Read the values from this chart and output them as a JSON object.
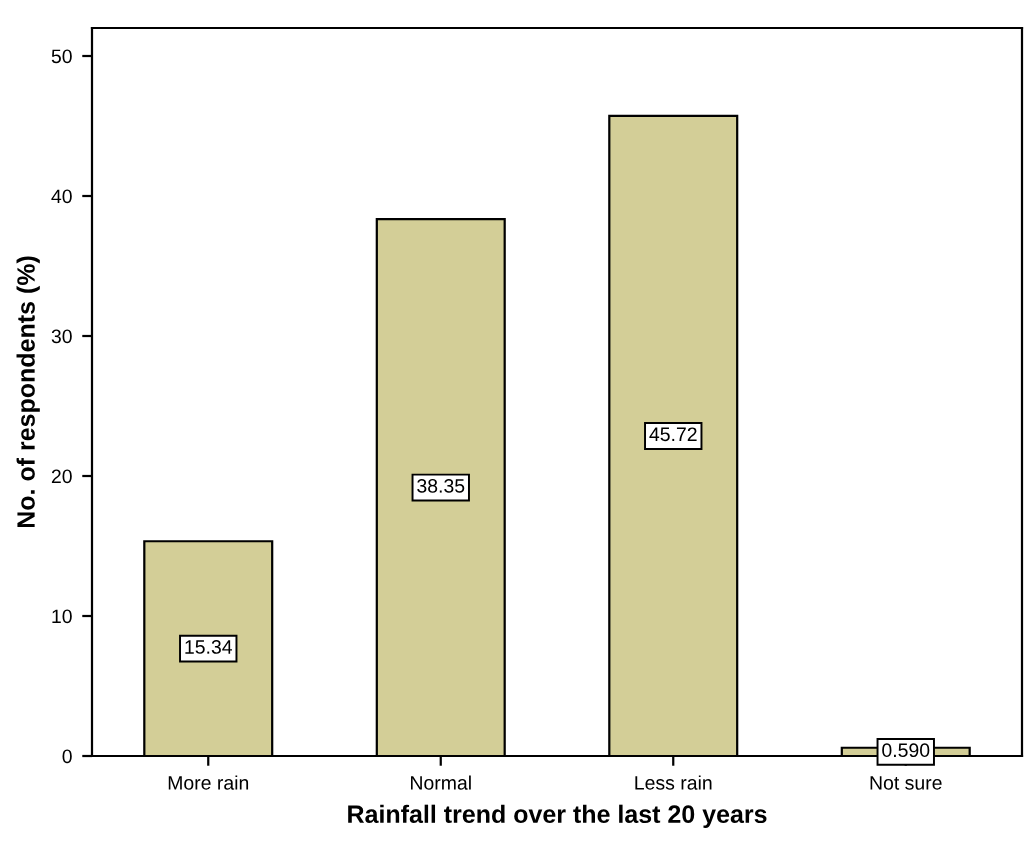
{
  "chart_data": {
    "type": "bar",
    "xlabel": "Rainfall trend over the last 20 years",
    "ylabel": "No. of respondents (%)",
    "categories": [
      "More rain",
      "Normal",
      "Less rain",
      "Not sure"
    ],
    "values": [
      15.34,
      38.35,
      45.72,
      0.59
    ],
    "value_labels": [
      "15.34",
      "38.35",
      "45.72",
      "0.590"
    ],
    "color": "#d3ce97",
    "ylim": [
      0,
      52
    ],
    "yticks": [
      0,
      10,
      20,
      30,
      40,
      50
    ],
    "grid": false
  }
}
